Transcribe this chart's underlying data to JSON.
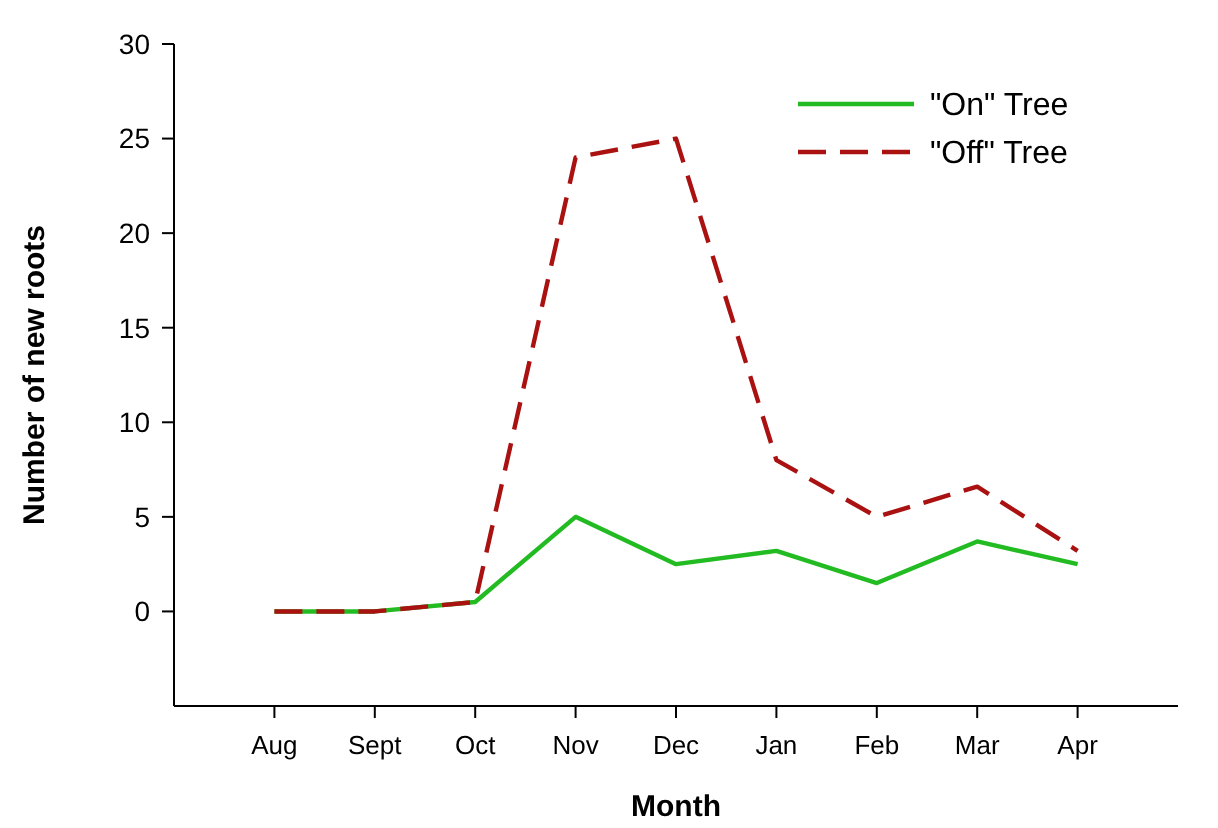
{
  "chart_data": {
    "type": "line",
    "xlabel": "Month",
    "ylabel": "Number of new roots",
    "categories": [
      "Aug",
      "Sept",
      "Oct",
      "Nov",
      "Dec",
      "Jan",
      "Feb",
      "Mar",
      "Apr"
    ],
    "series": [
      {
        "name": "\"On\" Tree",
        "color": "#22bb22",
        "line_style": "solid",
        "values": [
          0,
          0,
          0.5,
          5,
          2.5,
          3.2,
          1.5,
          3.7,
          2.5
        ]
      },
      {
        "name": "\"Off\" Tree",
        "color": "#aa1111",
        "line_style": "dashed",
        "values": [
          0,
          0,
          0.5,
          24,
          25,
          8,
          5,
          6.6,
          3.2
        ]
      }
    ],
    "ylim": [
      -5,
      30
    ],
    "yticks": [
      0,
      5,
      10,
      15,
      20,
      25,
      30
    ],
    "grid": false,
    "legend": "top right",
    "marker": "none"
  }
}
